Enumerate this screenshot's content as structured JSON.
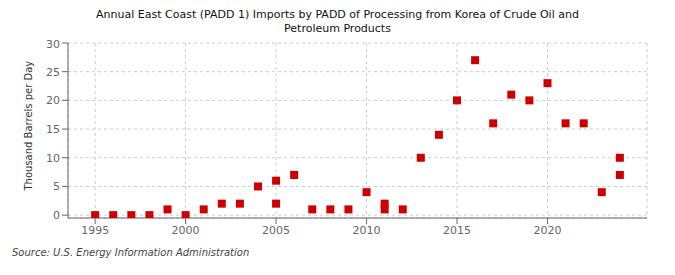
{
  "chart_data": {
    "type": "scatter",
    "title": "Annual East Coast (PADD 1) Imports by PADD of Processing from Korea of Crude Oil and\nPetroleum Products",
    "ylabel": "Thousand Barrels per Day",
    "annotations": [
      "Source: U.S. Energy Information Administration"
    ],
    "color": "#cc0000",
    "marker": "square",
    "grid": true,
    "xlim": [
      1993.5,
      2025.5
    ],
    "ylim": [
      -0.5,
      30
    ],
    "xticks": [
      1995,
      2000,
      2005,
      2010,
      2015,
      2020
    ],
    "yticks": [
      0,
      5,
      10,
      15,
      20,
      25,
      30
    ],
    "x": [
      1995,
      1996,
      1997,
      1998,
      1999,
      2000,
      2001,
      2002,
      2003,
      2004,
      2005,
      2005,
      2006,
      2007,
      2008,
      2009,
      2010,
      2011,
      2011,
      2012,
      2013,
      2014,
      2015,
      2016,
      2017,
      2018,
      2019,
      2020,
      2021,
      2022,
      2023,
      2024,
      2024
    ],
    "values": [
      0.0,
      0.0,
      0.0,
      0.0,
      1.0,
      0.0,
      1.0,
      2.0,
      2.0,
      5.0,
      2.0,
      6.0,
      7.0,
      1.0,
      1.0,
      1.0,
      4.0,
      2.0,
      1.0,
      1.0,
      10.0,
      14.0,
      20.0,
      27.0,
      16.0,
      21.0,
      20.0,
      23.0,
      16.0,
      16.0,
      4.0,
      10.0,
      7.0
    ]
  }
}
